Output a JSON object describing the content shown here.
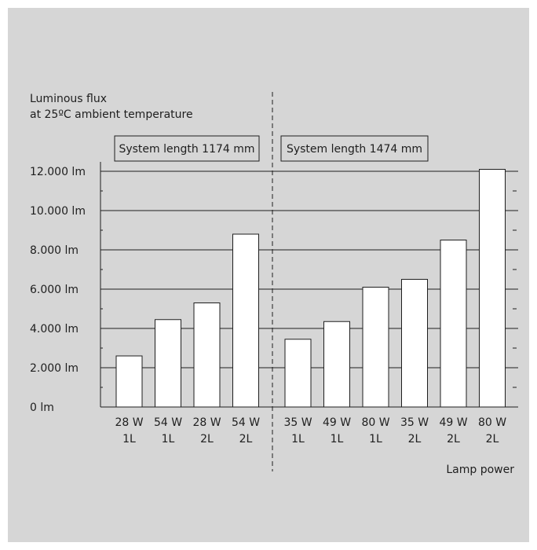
{
  "chart_data": {
    "type": "bar",
    "title_lines": [
      "Luminous flux",
      "at 25ºC ambient temperature"
    ],
    "xlabel": "Lamp power",
    "ylabel": "",
    "ylim": [
      0,
      12000
    ],
    "y_ticks": [
      {
        "value": 0,
        "label": "0 lm"
      },
      {
        "value": 2000,
        "label": "2.000 lm"
      },
      {
        "value": 4000,
        "label": "4.000 lm"
      },
      {
        "value": 6000,
        "label": "6.000 lm"
      },
      {
        "value": 8000,
        "label": "8.000 lm"
      },
      {
        "value": 10000,
        "label": "10.000 lm"
      },
      {
        "value": 12000,
        "label": "12.000 lm"
      }
    ],
    "grid": true,
    "groups": [
      {
        "label": "System length 1174 mm",
        "bars": [
          {
            "line1": "28 W",
            "line2": "1L",
            "value": 2600
          },
          {
            "line1": "54 W",
            "line2": "1L",
            "value": 4450
          },
          {
            "line1": "28 W",
            "line2": "2L",
            "value": 5300
          },
          {
            "line1": "54 W",
            "line2": "2L",
            "value": 8800
          }
        ]
      },
      {
        "label": "System length 1474 mm",
        "bars": [
          {
            "line1": "35 W",
            "line2": "1L",
            "value": 3450
          },
          {
            "line1": "49 W",
            "line2": "1L",
            "value": 4350
          },
          {
            "line1": "80 W",
            "line2": "1L",
            "value": 6100
          },
          {
            "line1": "35 W",
            "line2": "2L",
            "value": 6500
          },
          {
            "line1": "49 W",
            "line2": "2L",
            "value": 8500
          },
          {
            "line1": "80 W",
            "line2": "2L",
            "value": 12100
          }
        ]
      }
    ]
  },
  "colors": {
    "background": "#d6d6d6",
    "bar_fill": "#ffffff",
    "ink": "#1e1e1e"
  }
}
